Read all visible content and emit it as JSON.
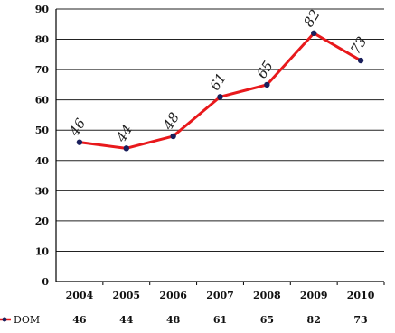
{
  "chart_data": {
    "type": "line",
    "categories": [
      "2004",
      "2005",
      "2006",
      "2007",
      "2008",
      "2009",
      "2010"
    ],
    "series": [
      {
        "name": "DOM",
        "values": [
          46,
          44,
          48,
          61,
          65,
          82,
          73
        ]
      }
    ],
    "ylim": [
      0,
      90
    ],
    "yticks": [
      "0",
      "10",
      "20",
      "30",
      "40",
      "50",
      "60",
      "70",
      "80",
      "90"
    ],
    "grid": true,
    "legend": "bottom-left",
    "data_table": {
      "series_label": "DOM",
      "values": [
        "46",
        "44",
        "48",
        "61",
        "65",
        "82",
        "73"
      ]
    },
    "data_labels": [
      "46",
      "44",
      "48",
      "61",
      "65",
      "82",
      "73"
    ],
    "colors": {
      "line": "#e8191c",
      "marker": "#1a1f5c",
      "grid": "#222222",
      "axis": "#000000"
    }
  }
}
